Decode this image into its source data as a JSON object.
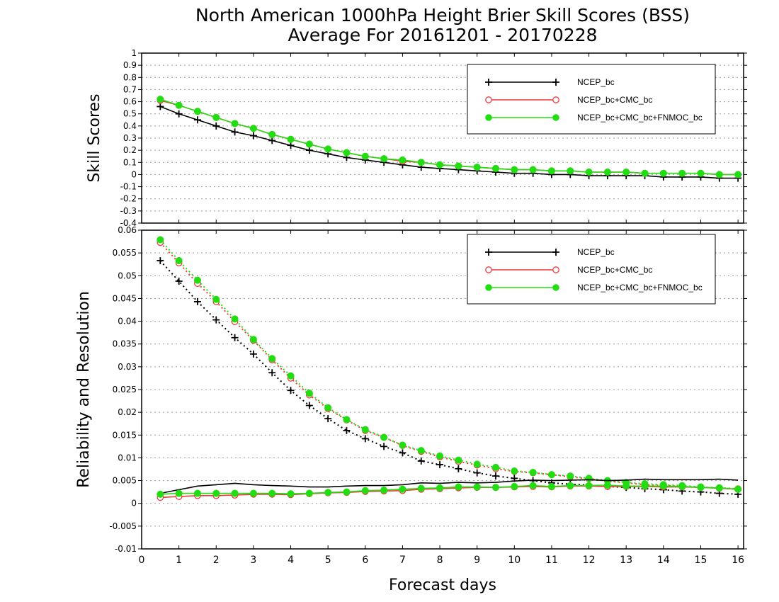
{
  "title_line1": "North American 1000hPa Height Brier Skill Scores (BSS)",
  "title_line2": "Average For 20161201 - 20170228",
  "xlabel": "Forecast days",
  "colors": {
    "NCEP_bc": "#000000",
    "NCEP_bc+CMC_bc": "#ee3b3b",
    "NCEP_bc+CMC_bc+FNMOC_bc": "#22dd11"
  },
  "chart_data": [
    {
      "type": "line",
      "ylabel": "Skill Scores",
      "xlim": [
        0,
        16.15
      ],
      "ylim": [
        -0.4,
        1
      ],
      "yticks": [
        "1",
        "0.9",
        "0.8",
        "0.7",
        "0.6",
        "0.5",
        "0.4",
        "0.3",
        "0.2",
        "0.1",
        "0",
        "-0.1",
        "-0.2",
        "-0.3",
        "-0.4"
      ],
      "ytick_values": [
        1,
        0.9,
        0.8,
        0.7,
        0.6,
        0.5,
        0.4,
        0.3,
        0.2,
        0.1,
        0,
        -0.1,
        -0.2,
        -0.3,
        -0.4
      ],
      "grid": true,
      "legend_position": "top-right",
      "x": [
        0.5,
        1,
        1.5,
        2,
        2.5,
        3,
        3.5,
        4,
        4.5,
        5,
        5.5,
        6,
        6.5,
        7,
        7.5,
        8,
        8.5,
        9,
        9.5,
        10,
        10.5,
        11,
        11.5,
        12,
        12.5,
        13,
        13.5,
        14,
        14.5,
        15,
        15.5,
        16
      ],
      "series": [
        {
          "name": "NCEP_bc",
          "marker": "plus",
          "line": "solid",
          "values": [
            0.56,
            0.5,
            0.45,
            0.4,
            0.35,
            0.32,
            0.28,
            0.24,
            0.2,
            0.17,
            0.14,
            0.12,
            0.1,
            0.08,
            0.06,
            0.05,
            0.04,
            0.03,
            0.02,
            0.01,
            0.01,
            0.0,
            0.0,
            -0.01,
            -0.01,
            -0.01,
            -0.01,
            -0.02,
            -0.02,
            -0.02,
            -0.03,
            -0.03
          ]
        },
        {
          "name": "NCEP_bc+CMC_bc",
          "marker": "circle-open",
          "line": "solid",
          "values": [
            0.61,
            0.57,
            0.52,
            0.47,
            0.42,
            0.38,
            0.33,
            0.29,
            0.25,
            0.21,
            0.18,
            0.15,
            0.13,
            0.11,
            0.1,
            0.08,
            0.07,
            0.06,
            0.05,
            0.04,
            0.04,
            0.03,
            0.03,
            0.02,
            0.02,
            0.02,
            0.01,
            0.01,
            0.01,
            0.01,
            0.0,
            0.0
          ]
        },
        {
          "name": "NCEP_bc+CMC_bc+FNMOC_bc",
          "marker": "circle-filled",
          "line": "solid",
          "values": [
            0.62,
            0.57,
            0.52,
            0.47,
            0.42,
            0.38,
            0.33,
            0.29,
            0.25,
            0.21,
            0.18,
            0.15,
            0.13,
            0.12,
            0.1,
            0.08,
            0.07,
            0.06,
            0.05,
            0.04,
            0.04,
            0.03,
            0.03,
            0.02,
            0.02,
            0.02,
            0.01,
            0.01,
            0.01,
            0.01,
            0.0,
            0.0
          ]
        }
      ]
    },
    {
      "type": "line",
      "ylabel": "Reliability and Resolution",
      "xlim": [
        0,
        16.15
      ],
      "ylim": [
        -0.01,
        0.06
      ],
      "yticks": [
        "0.06",
        "0.055",
        "0.05",
        "0.045",
        "0.04",
        "0.035",
        "0.03",
        "0.025",
        "0.02",
        "0.015",
        "0.01",
        "0.005",
        "0",
        "-0.005",
        "-0.01"
      ],
      "ytick_values": [
        0.06,
        0.055,
        0.05,
        0.045,
        0.04,
        0.035,
        0.03,
        0.025,
        0.02,
        0.015,
        0.01,
        0.005,
        0,
        -0.005,
        -0.01
      ],
      "xticks": [
        "0",
        "1",
        "2",
        "3",
        "4",
        "5",
        "6",
        "7",
        "8",
        "9",
        "10",
        "11",
        "12",
        "13",
        "14",
        "15",
        "16"
      ],
      "xtick_values": [
        0,
        1,
        2,
        3,
        4,
        5,
        6,
        7,
        8,
        9,
        10,
        11,
        12,
        13,
        14,
        15,
        16
      ],
      "grid": true,
      "legend_position": "top-right",
      "x": [
        0.5,
        1,
        1.5,
        2,
        2.5,
        3,
        3.5,
        4,
        4.5,
        5,
        5.5,
        6,
        6.5,
        7,
        7.5,
        8,
        8.5,
        9,
        9.5,
        10,
        10.5,
        11,
        11.5,
        12,
        12.5,
        13,
        13.5,
        14,
        14.5,
        15,
        15.5,
        16
      ],
      "series": [
        {
          "name": "NCEP_bc",
          "group": "reliability",
          "marker": "plus",
          "line": "dotted",
          "values": [
            0.0533,
            0.0488,
            0.0443,
            0.0403,
            0.0364,
            0.0328,
            0.0287,
            0.0248,
            0.0215,
            0.0186,
            0.016,
            0.0142,
            0.0125,
            0.0111,
            0.0093,
            0.0085,
            0.0076,
            0.0067,
            0.006,
            0.0055,
            0.005,
            0.0045,
            0.0042,
            0.004,
            0.0037,
            0.0035,
            0.0032,
            0.003,
            0.0027,
            0.0025,
            0.0022,
            0.002
          ]
        },
        {
          "name": "NCEP_bc+CMC_bc",
          "group": "reliability",
          "marker": "circle-open",
          "line": "dotted",
          "values": [
            0.0573,
            0.0528,
            0.0483,
            0.0443,
            0.0399,
            0.0358,
            0.0315,
            0.0275,
            0.0238,
            0.0208,
            0.0183,
            0.016,
            0.0145,
            0.0127,
            0.0114,
            0.0102,
            0.0092,
            0.0084,
            0.0076,
            0.007,
            0.0067,
            0.0063,
            0.0058,
            0.0054,
            0.0049,
            0.0045,
            0.0041,
            0.0039,
            0.0037,
            0.0035,
            0.0034,
            0.0032
          ]
        },
        {
          "name": "NCEP_bc+CMC_bc+FNMOC_bc",
          "group": "reliability",
          "marker": "circle-filled",
          "line": "dotted",
          "values": [
            0.0579,
            0.0533,
            0.049,
            0.0448,
            0.0405,
            0.036,
            0.0318,
            0.028,
            0.0242,
            0.021,
            0.0184,
            0.0162,
            0.0145,
            0.0128,
            0.0116,
            0.0104,
            0.0095,
            0.0086,
            0.0079,
            0.0071,
            0.0068,
            0.0063,
            0.006,
            0.0055,
            0.005,
            0.0046,
            0.0043,
            0.0041,
            0.0039,
            0.0036,
            0.0034,
            0.0031
          ]
        },
        {
          "name": "NCEP_bc",
          "group": "resolution",
          "marker": "none",
          "line": "solid",
          "values": [
            0.0022,
            0.003,
            0.0038,
            0.0041,
            0.0044,
            0.0041,
            0.0039,
            0.0038,
            0.0036,
            0.0036,
            0.0038,
            0.0039,
            0.0039,
            0.0041,
            0.0045,
            0.0044,
            0.0046,
            0.0045,
            0.0046,
            0.0049,
            0.0051,
            0.005,
            0.0051,
            0.0052,
            0.005,
            0.0051,
            0.0053,
            0.0052,
            0.0052,
            0.0052,
            0.0053,
            0.0051
          ]
        },
        {
          "name": "NCEP_bc+CMC_bc",
          "group": "resolution",
          "marker": "circle-open",
          "line": "solid",
          "values": [
            0.0013,
            0.0015,
            0.0017,
            0.0017,
            0.0018,
            0.002,
            0.002,
            0.0019,
            0.0021,
            0.0023,
            0.0024,
            0.0026,
            0.0027,
            0.0028,
            0.0031,
            0.0032,
            0.0034,
            0.0035,
            0.0035,
            0.0036,
            0.0037,
            0.0036,
            0.0038,
            0.0038,
            0.0037,
            0.0037,
            0.0037,
            0.0036,
            0.0036,
            0.0035,
            0.0033,
            0.0031
          ]
        },
        {
          "name": "NCEP_bc+CMC_bc+FNMOC_bc",
          "group": "resolution",
          "marker": "circle-filled",
          "line": "solid",
          "values": [
            0.002,
            0.0022,
            0.0022,
            0.0022,
            0.0022,
            0.0022,
            0.0022,
            0.0021,
            0.0022,
            0.0024,
            0.0025,
            0.0028,
            0.0029,
            0.0031,
            0.0033,
            0.0034,
            0.0036,
            0.0036,
            0.0035,
            0.0037,
            0.0039,
            0.0037,
            0.0039,
            0.0039,
            0.004,
            0.0038,
            0.0038,
            0.0038,
            0.0037,
            0.0035,
            0.0034,
            0.0031
          ]
        }
      ]
    }
  ]
}
